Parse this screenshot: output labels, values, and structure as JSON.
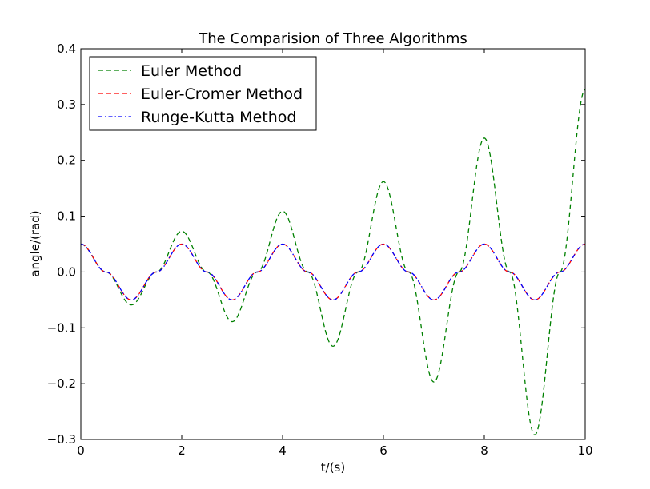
{
  "chart_data": {
    "type": "line",
    "title": "The Comparision of  Three Algorithms",
    "xlabel": "t/(s)",
    "ylabel": "angle/(rad)",
    "xlim": [
      0,
      10
    ],
    "ylim": [
      -0.3,
      0.4
    ],
    "x_ticks": [
      0,
      2,
      4,
      6,
      8,
      10
    ],
    "y_ticks": [
      -0.3,
      -0.2,
      -0.1,
      0.0,
      0.1,
      0.2,
      0.3,
      0.4
    ],
    "x_tick_labels": [
      "0",
      "2",
      "4",
      "6",
      "8",
      "10"
    ],
    "y_tick_labels": [
      "−0.3",
      "−0.2",
      "−0.1",
      "0.0",
      "0.1",
      "0.2",
      "0.3",
      "0.4"
    ],
    "grid": false,
    "legend_position": "top-left",
    "series": [
      {
        "name": "Euler Method",
        "color": "#008000",
        "dash": "dashed",
        "x": [
          0,
          0.5,
          1.0,
          1.5,
          2.0,
          2.5,
          3.0,
          3.5,
          4.0,
          4.5,
          5.0,
          5.5,
          6.0,
          6.5,
          7.0,
          7.5,
          8.0,
          8.5,
          9.0,
          9.5,
          10.0
        ],
        "y": [
          0.05,
          0.0,
          -0.059,
          0.0,
          0.073,
          0.0,
          -0.089,
          0.0,
          0.109,
          0.0,
          -0.133,
          0.0,
          0.162,
          0.0,
          -0.197,
          0.0,
          0.24,
          0.0,
          -0.292,
          0.0,
          0.327
        ]
      },
      {
        "name": "Euler-Cromer Method",
        "color": "#ff0000",
        "dash": "dashed",
        "x": [
          0,
          0.5,
          1.0,
          1.5,
          2.0,
          2.5,
          3.0,
          3.5,
          4.0,
          4.5,
          5.0,
          5.5,
          6.0,
          6.5,
          7.0,
          7.5,
          8.0,
          8.5,
          9.0,
          9.5,
          10.0
        ],
        "y": [
          0.05,
          0.0,
          -0.05,
          0.0,
          0.05,
          0.0,
          -0.05,
          0.0,
          0.05,
          0.0,
          -0.05,
          0.0,
          0.05,
          0.0,
          -0.05,
          0.0,
          0.05,
          0.0,
          -0.05,
          0.0,
          0.05
        ]
      },
      {
        "name": "Runge-Kutta Method",
        "color": "#0000ff",
        "dash": "dashdot",
        "x": [
          0,
          0.5,
          1.0,
          1.5,
          2.0,
          2.5,
          3.0,
          3.5,
          4.0,
          4.5,
          5.0,
          5.5,
          6.0,
          6.5,
          7.0,
          7.5,
          8.0,
          8.5,
          9.0,
          9.5,
          10.0
        ],
        "y": [
          0.05,
          0.0,
          -0.05,
          0.0,
          0.05,
          0.0,
          -0.05,
          0.0,
          0.05,
          0.0,
          -0.05,
          0.0,
          0.05,
          0.0,
          -0.05,
          0.0,
          0.05,
          0.0,
          -0.05,
          0.0,
          0.05
        ]
      }
    ]
  }
}
